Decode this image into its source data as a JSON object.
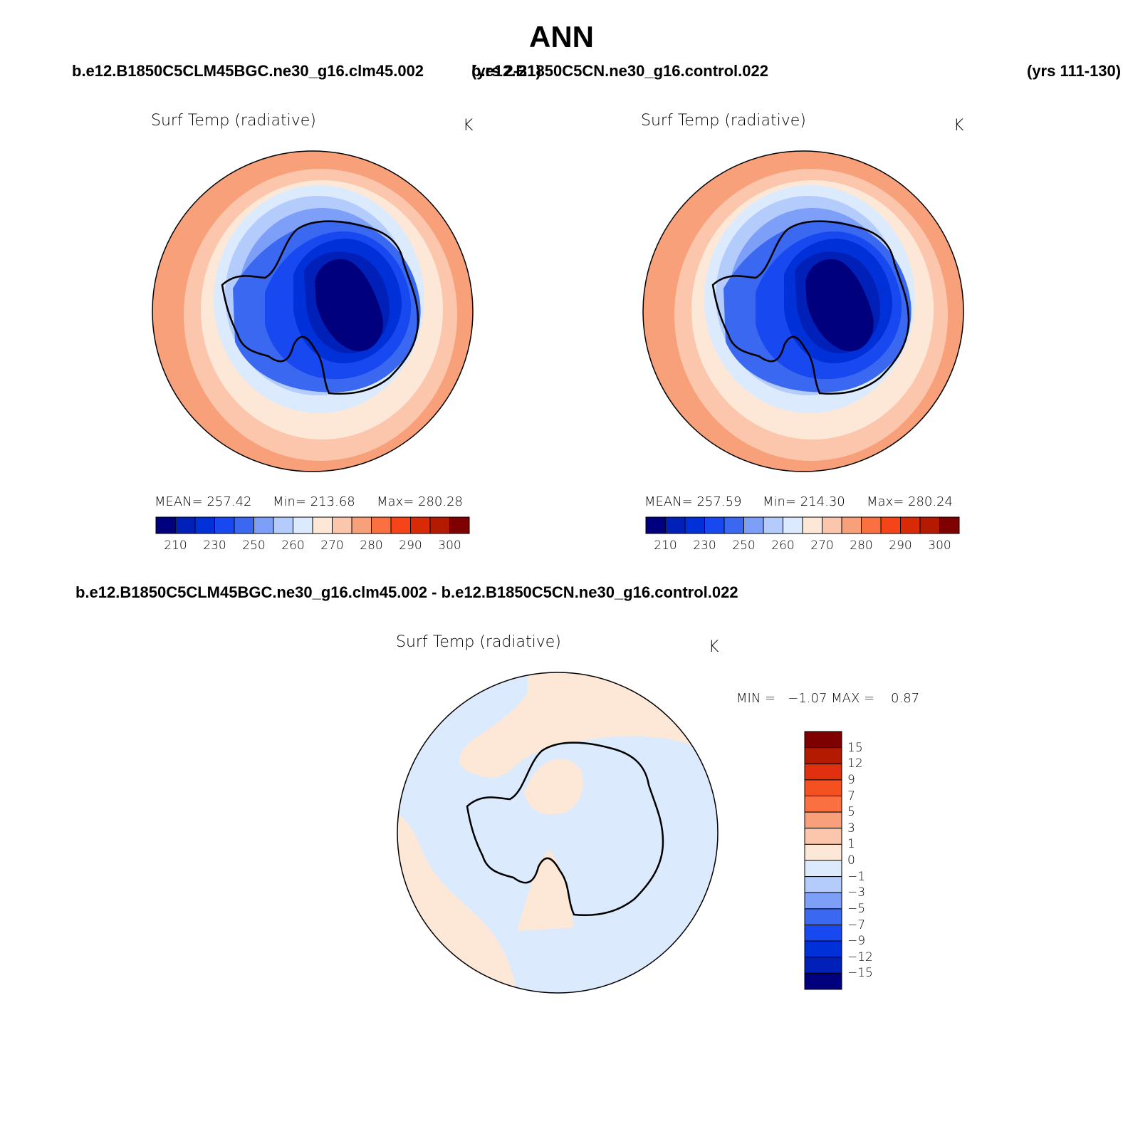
{
  "page": {
    "title": "ANN"
  },
  "top_left": {
    "case": "b.e12.B1850C5CLM45BGC.ne30_g16.clm45.002",
    "years": "(yrs 2-21)",
    "variable": "Surf Temp (radiative)",
    "units": "K",
    "stats": {
      "mean": "MEAN= 257.42",
      "min": "Min= 213.68",
      "max": "Max= 280.28"
    }
  },
  "top_right": {
    "case": "b.e12.B1850C5CN.ne30_g16.control.022",
    "years": "(yrs 111-130)",
    "variable": "Surf Temp (radiative)",
    "units": "K",
    "stats": {
      "mean": "MEAN= 257.59",
      "min": "Min= 214.30",
      "max": "Max= 280.24"
    }
  },
  "difference": {
    "case": "b.e12.B1850C5CLM45BGC.ne30_g16.clm45.002 - b.e12.B1850C5CN.ne30_g16.control.022",
    "variable": "Surf Temp (radiative)",
    "units": "K",
    "stats": "MIN =   −1.07 MAX =    0.87"
  },
  "temp_colorbar": {
    "colors": [
      "#00007f",
      "#0020b8",
      "#0030d8",
      "#1848f0",
      "#3a68f0",
      "#7e9ff8",
      "#b4ccfc",
      "#dbeafc",
      "#fde8d8",
      "#fcc6ac",
      "#f8a07a",
      "#fa7040",
      "#f54418",
      "#d82a04",
      "#b41a00",
      "#7f0000"
    ],
    "ticks": [
      "210",
      "230",
      "250",
      "260",
      "270",
      "280",
      "290",
      "300"
    ]
  },
  "diff_colorbar": {
    "colors_top_to_bottom": [
      "#7f0000",
      "#b41a00",
      "#e03010",
      "#f55020",
      "#fa7040",
      "#f8a07a",
      "#fcc6ac",
      "#fde8d8",
      "#dbeafc",
      "#b4ccfc",
      "#7e9ff8",
      "#3a68f0",
      "#1848f0",
      "#0030d8",
      "#0020b8",
      "#00007f"
    ],
    "ticks_top_to_bottom": [
      "15",
      "12",
      "9",
      "7",
      "5",
      "3",
      "1",
      "0",
      "−1",
      "−3",
      "−5",
      "−7",
      "−9",
      "−12",
      "−15"
    ]
  },
  "map_colors": {
    "outer_warm": "#f8a07a",
    "mid_warm": "#fcc6ac",
    "light_warm": "#fde8d8",
    "light_cool": "#dbeafc",
    "cool1": "#b4ccfc",
    "cool2": "#7e9ff8",
    "cool3": "#3a68f0",
    "cool4": "#1848f0",
    "cool5": "#0030d8",
    "cool6": "#0020b8",
    "core": "#00007f"
  }
}
